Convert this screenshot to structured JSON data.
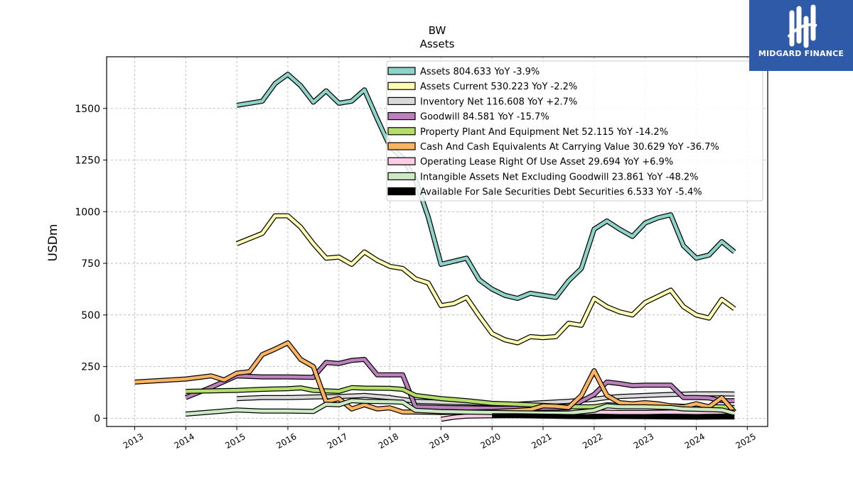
{
  "chart_data": {
    "type": "line",
    "title": "BW",
    "subtitle": "Assets",
    "ylabel": "USDm",
    "xlabel": "",
    "ylim": [
      -40,
      1750
    ],
    "xlim": [
      2012.45,
      2025.4
    ],
    "yticks": [
      0,
      250,
      500,
      750,
      1000,
      1250,
      1500
    ],
    "xticks": [
      2013,
      2014,
      2015,
      2016,
      2017,
      2018,
      2019,
      2020,
      2021,
      2022,
      2023,
      2024,
      2025
    ],
    "grid": true,
    "legend_position": "top-right",
    "series": [
      {
        "name": "Assets  804.633 YoY -3.9%",
        "color": "#8dd3c7",
        "points": [
          [
            2015.0,
            1515
          ],
          [
            2015.5,
            1535
          ],
          [
            2015.75,
            1620
          ],
          [
            2016.0,
            1665
          ],
          [
            2016.25,
            1610
          ],
          [
            2016.5,
            1530
          ],
          [
            2016.75,
            1585
          ],
          [
            2017.0,
            1525
          ],
          [
            2017.25,
            1535
          ],
          [
            2017.5,
            1590
          ],
          [
            2017.75,
            1450
          ],
          [
            2018.0,
            1315
          ],
          [
            2018.25,
            1260
          ],
          [
            2018.5,
            1155
          ],
          [
            2018.75,
            975
          ],
          [
            2019.0,
            745
          ],
          [
            2019.25,
            760
          ],
          [
            2019.5,
            775
          ],
          [
            2019.75,
            670
          ],
          [
            2020.0,
            625
          ],
          [
            2020.25,
            595
          ],
          [
            2020.5,
            580
          ],
          [
            2020.75,
            605
          ],
          [
            2021.0,
            595
          ],
          [
            2021.25,
            585
          ],
          [
            2021.5,
            665
          ],
          [
            2021.75,
            725
          ],
          [
            2022.0,
            915
          ],
          [
            2022.25,
            955
          ],
          [
            2022.5,
            915
          ],
          [
            2022.75,
            880
          ],
          [
            2023.0,
            945
          ],
          [
            2023.25,
            970
          ],
          [
            2023.5,
            985
          ],
          [
            2023.75,
            835
          ],
          [
            2024.0,
            775
          ],
          [
            2024.25,
            790
          ],
          [
            2024.5,
            855
          ],
          [
            2024.75,
            805
          ]
        ]
      },
      {
        "name": "Assets Current  530.223 YoY -2.2%",
        "color": "#ffffb3",
        "points": [
          [
            2015.0,
            845
          ],
          [
            2015.5,
            895
          ],
          [
            2015.75,
            980
          ],
          [
            2016.0,
            980
          ],
          [
            2016.25,
            925
          ],
          [
            2016.5,
            845
          ],
          [
            2016.75,
            775
          ],
          [
            2017.0,
            780
          ],
          [
            2017.25,
            745
          ],
          [
            2017.5,
            805
          ],
          [
            2017.75,
            765
          ],
          [
            2018.0,
            735
          ],
          [
            2018.25,
            725
          ],
          [
            2018.5,
            675
          ],
          [
            2018.75,
            655
          ],
          [
            2019.0,
            545
          ],
          [
            2019.25,
            555
          ],
          [
            2019.5,
            585
          ],
          [
            2019.75,
            495
          ],
          [
            2020.0,
            410
          ],
          [
            2020.25,
            380
          ],
          [
            2020.5,
            365
          ],
          [
            2020.75,
            395
          ],
          [
            2021.0,
            390
          ],
          [
            2021.25,
            395
          ],
          [
            2021.5,
            460
          ],
          [
            2021.75,
            450
          ],
          [
            2022.0,
            580
          ],
          [
            2022.25,
            540
          ],
          [
            2022.5,
            515
          ],
          [
            2022.75,
            500
          ],
          [
            2023.0,
            560
          ],
          [
            2023.25,
            590
          ],
          [
            2023.5,
            620
          ],
          [
            2023.75,
            540
          ],
          [
            2024.0,
            500
          ],
          [
            2024.25,
            485
          ],
          [
            2024.5,
            575
          ],
          [
            2024.75,
            530
          ]
        ]
      },
      {
        "name": "Inventory Net  116.608 YoY +2.7%",
        "color": "#d9d9d9",
        "points": [
          [
            2015.0,
            95
          ],
          [
            2015.5,
            100
          ],
          [
            2016.0,
            100
          ],
          [
            2016.5,
            103
          ],
          [
            2017.0,
            105
          ],
          [
            2017.5,
            110
          ],
          [
            2018.0,
            100
          ],
          [
            2018.5,
            82
          ],
          [
            2019.0,
            78
          ],
          [
            2019.5,
            75
          ],
          [
            2020.0,
            70
          ],
          [
            2020.5,
            68
          ],
          [
            2021.0,
            75
          ],
          [
            2021.5,
            82
          ],
          [
            2022.0,
            92
          ],
          [
            2022.25,
            100
          ],
          [
            2022.5,
            105
          ],
          [
            2023.0,
            110
          ],
          [
            2023.5,
            115
          ],
          [
            2024.0,
            118
          ],
          [
            2024.5,
            118
          ],
          [
            2024.75,
            117
          ]
        ]
      },
      {
        "name": "Goodwill  84.581 YoY -15.7%",
        "color": "#bc80bd",
        "points": [
          [
            2014.0,
            100
          ],
          [
            2014.5,
            150
          ],
          [
            2015.0,
            205
          ],
          [
            2015.5,
            200
          ],
          [
            2016.0,
            200
          ],
          [
            2016.5,
            198
          ],
          [
            2016.75,
            270
          ],
          [
            2017.0,
            265
          ],
          [
            2017.25,
            280
          ],
          [
            2017.5,
            285
          ],
          [
            2017.75,
            210
          ],
          [
            2018.0,
            210
          ],
          [
            2018.25,
            210
          ],
          [
            2018.5,
            55
          ],
          [
            2019.0,
            52
          ],
          [
            2019.5,
            50
          ],
          [
            2020.0,
            48
          ],
          [
            2020.5,
            48
          ],
          [
            2021.0,
            48
          ],
          [
            2021.5,
            50
          ],
          [
            2022.0,
            115
          ],
          [
            2022.25,
            175
          ],
          [
            2022.5,
            168
          ],
          [
            2022.75,
            158
          ],
          [
            2023.0,
            160
          ],
          [
            2023.5,
            160
          ],
          [
            2023.75,
            100
          ],
          [
            2024.0,
            100
          ],
          [
            2024.25,
            98
          ],
          [
            2024.5,
            85
          ],
          [
            2024.75,
            85
          ]
        ]
      },
      {
        "name": "Property Plant And Equipment Net  52.115 YoY -14.2%",
        "color": "#b3de69",
        "points": [
          [
            2014.0,
            130
          ],
          [
            2015.0,
            135
          ],
          [
            2015.5,
            140
          ],
          [
            2016.0,
            143
          ],
          [
            2016.25,
            147
          ],
          [
            2016.5,
            135
          ],
          [
            2017.0,
            130
          ],
          [
            2017.25,
            148
          ],
          [
            2017.5,
            146
          ],
          [
            2018.0,
            145
          ],
          [
            2018.25,
            140
          ],
          [
            2018.5,
            110
          ],
          [
            2019.0,
            95
          ],
          [
            2019.5,
            85
          ],
          [
            2020.0,
            72
          ],
          [
            2020.5,
            68
          ],
          [
            2021.0,
            62
          ],
          [
            2021.5,
            55
          ],
          [
            2022.0,
            55
          ],
          [
            2022.25,
            65
          ],
          [
            2022.5,
            62
          ],
          [
            2023.0,
            60
          ],
          [
            2023.5,
            60
          ],
          [
            2024.0,
            55
          ],
          [
            2024.5,
            55
          ],
          [
            2024.75,
            52
          ]
        ]
      },
      {
        "name": "Cash And Cash Equivalents At Carrying Value  30.629 YoY -36.7%",
        "color": "#fdb462",
        "points": [
          [
            2013.0,
            175
          ],
          [
            2014.0,
            190
          ],
          [
            2014.5,
            205
          ],
          [
            2014.75,
            185
          ],
          [
            2015.0,
            218
          ],
          [
            2015.25,
            225
          ],
          [
            2015.5,
            308
          ],
          [
            2015.75,
            335
          ],
          [
            2016.0,
            365
          ],
          [
            2016.25,
            285
          ],
          [
            2016.5,
            250
          ],
          [
            2016.75,
            80
          ],
          [
            2017.0,
            95
          ],
          [
            2017.25,
            45
          ],
          [
            2017.5,
            65
          ],
          [
            2017.75,
            45
          ],
          [
            2018.0,
            50
          ],
          [
            2018.25,
            30
          ],
          [
            2018.5,
            30
          ],
          [
            2019.0,
            28
          ],
          [
            2019.5,
            30
          ],
          [
            2020.0,
            32
          ],
          [
            2020.5,
            38
          ],
          [
            2020.75,
            42
          ],
          [
            2021.0,
            60
          ],
          [
            2021.25,
            58
          ],
          [
            2021.5,
            52
          ],
          [
            2021.75,
            110
          ],
          [
            2022.0,
            230
          ],
          [
            2022.25,
            110
          ],
          [
            2022.5,
            75
          ],
          [
            2022.75,
            70
          ],
          [
            2023.0,
            75
          ],
          [
            2023.25,
            70
          ],
          [
            2023.5,
            60
          ],
          [
            2023.75,
            55
          ],
          [
            2024.0,
            70
          ],
          [
            2024.25,
            55
          ],
          [
            2024.5,
            100
          ],
          [
            2024.75,
            30
          ]
        ]
      },
      {
        "name": "Operating Lease Right Of Use Asset  29.694 YoY +6.9%",
        "color": "#fccde5",
        "points": [
          [
            2019.0,
            -5
          ],
          [
            2019.25,
            5
          ],
          [
            2019.5,
            10
          ],
          [
            2020.0,
            12
          ],
          [
            2020.5,
            15
          ],
          [
            2021.0,
            18
          ],
          [
            2021.5,
            20
          ],
          [
            2022.0,
            30
          ],
          [
            2022.5,
            28
          ],
          [
            2023.0,
            28
          ],
          [
            2023.5,
            30
          ],
          [
            2024.0,
            28
          ],
          [
            2024.5,
            30
          ],
          [
            2024.75,
            30
          ]
        ]
      },
      {
        "name": "Intangible Assets Net Excluding Goodwill  23.861 YoY -48.2%",
        "color": "#ccebc5",
        "points": [
          [
            2014.0,
            20
          ],
          [
            2015.0,
            40
          ],
          [
            2015.5,
            35
          ],
          [
            2016.0,
            35
          ],
          [
            2016.5,
            33
          ],
          [
            2016.75,
            68
          ],
          [
            2017.0,
            65
          ],
          [
            2017.25,
            85
          ],
          [
            2017.5,
            82
          ],
          [
            2018.0,
            80
          ],
          [
            2018.25,
            78
          ],
          [
            2018.5,
            38
          ],
          [
            2019.0,
            32
          ],
          [
            2019.5,
            30
          ],
          [
            2020.0,
            28
          ],
          [
            2020.5,
            26
          ],
          [
            2021.0,
            25
          ],
          [
            2021.5,
            25
          ],
          [
            2022.0,
            38
          ],
          [
            2022.25,
            60
          ],
          [
            2022.5,
            56
          ],
          [
            2023.0,
            55
          ],
          [
            2023.5,
            52
          ],
          [
            2023.75,
            45
          ],
          [
            2024.0,
            44
          ],
          [
            2024.5,
            40
          ],
          [
            2024.75,
            24
          ]
        ]
      },
      {
        "name": "Available For Sale Securities Debt Securities  6.533 YoY -5.4%",
        "color": "#000000",
        "points": [
          [
            2020.0,
            12
          ],
          [
            2020.5,
            12
          ],
          [
            2021.0,
            10
          ],
          [
            2021.5,
            8
          ],
          [
            2022.0,
            7
          ],
          [
            2022.5,
            8
          ],
          [
            2023.0,
            7
          ],
          [
            2023.5,
            6
          ],
          [
            2024.0,
            5
          ],
          [
            2024.5,
            6
          ],
          [
            2024.75,
            6
          ]
        ]
      }
    ]
  },
  "logo": {
    "text": "MIDGARD FINANCE",
    "background": "#2f5aa8"
  }
}
